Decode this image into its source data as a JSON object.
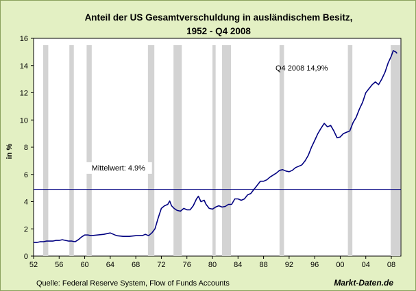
{
  "chart_data": {
    "type": "line",
    "title_line1": "Anteil der US Gesamtverschuldung in ausländischem Besitz,",
    "title_line2": "1952 - Q4 2008",
    "ylabel": "in %",
    "xlabel": "",
    "xlim": [
      1952,
      2009.5
    ],
    "ylim": [
      0,
      16
    ],
    "x_tick_labels": [
      "52",
      "56",
      "60",
      "64",
      "68",
      "72",
      "76",
      "80",
      "84",
      "88",
      "92",
      "96",
      "00",
      "04",
      "08"
    ],
    "x_ticks": [
      1952,
      1956,
      1960,
      1964,
      1968,
      1972,
      1976,
      1980,
      1984,
      1988,
      1992,
      1996,
      2000,
      2004,
      2008
    ],
    "y_ticks": [
      0,
      2,
      4,
      6,
      8,
      10,
      12,
      14,
      16
    ],
    "recessions": [
      [
        1953.5,
        1954.3
      ],
      [
        1957.6,
        1958.3
      ],
      [
        1960.3,
        1961.1
      ],
      [
        1969.9,
        1970.9
      ],
      [
        1973.9,
        1975.2
      ],
      [
        1980.0,
        1980.5
      ],
      [
        1981.5,
        1982.9
      ],
      [
        1990.5,
        1991.2
      ],
      [
        2001.2,
        2001.9
      ],
      [
        2007.9,
        2009.5
      ]
    ],
    "mean_line": 4.9,
    "mean_label": "Mittelwert: 4.9%",
    "end_annotation": "Q4 2008 14,9%",
    "series": [
      {
        "values": [
          [
            1952.0,
            1.0
          ],
          [
            1952.5,
            1.0
          ],
          [
            1953.0,
            1.05
          ],
          [
            1953.5,
            1.05
          ],
          [
            1954.0,
            1.1
          ],
          [
            1954.5,
            1.1
          ],
          [
            1955.0,
            1.1
          ],
          [
            1955.5,
            1.15
          ],
          [
            1956.0,
            1.15
          ],
          [
            1956.5,
            1.2
          ],
          [
            1957.0,
            1.15
          ],
          [
            1957.5,
            1.1
          ],
          [
            1958.0,
            1.1
          ],
          [
            1958.5,
            1.05
          ],
          [
            1959.0,
            1.2
          ],
          [
            1959.5,
            1.4
          ],
          [
            1960.0,
            1.55
          ],
          [
            1960.5,
            1.55
          ],
          [
            1961.0,
            1.5
          ],
          [
            1962.0,
            1.55
          ],
          [
            1963.0,
            1.6
          ],
          [
            1964.0,
            1.7
          ],
          [
            1964.5,
            1.6
          ],
          [
            1965.0,
            1.5
          ],
          [
            1966.0,
            1.45
          ],
          [
            1967.0,
            1.45
          ],
          [
            1968.0,
            1.5
          ],
          [
            1969.0,
            1.5
          ],
          [
            1969.5,
            1.6
          ],
          [
            1970.0,
            1.5
          ],
          [
            1970.5,
            1.7
          ],
          [
            1971.0,
            2.0
          ],
          [
            1971.5,
            2.8
          ],
          [
            1972.0,
            3.5
          ],
          [
            1972.5,
            3.7
          ],
          [
            1973.0,
            3.8
          ],
          [
            1973.3,
            4.05
          ],
          [
            1973.6,
            3.7
          ],
          [
            1974.0,
            3.5
          ],
          [
            1974.5,
            3.35
          ],
          [
            1975.0,
            3.3
          ],
          [
            1975.5,
            3.5
          ],
          [
            1976.0,
            3.4
          ],
          [
            1976.5,
            3.4
          ],
          [
            1977.0,
            3.7
          ],
          [
            1977.5,
            4.2
          ],
          [
            1977.8,
            4.4
          ],
          [
            1978.2,
            4.0
          ],
          [
            1978.7,
            4.1
          ],
          [
            1979.0,
            3.8
          ],
          [
            1979.5,
            3.5
          ],
          [
            1980.0,
            3.45
          ],
          [
            1980.5,
            3.6
          ],
          [
            1981.0,
            3.7
          ],
          [
            1981.5,
            3.6
          ],
          [
            1982.0,
            3.65
          ],
          [
            1982.5,
            3.8
          ],
          [
            1983.0,
            3.8
          ],
          [
            1983.5,
            4.2
          ],
          [
            1984.0,
            4.2
          ],
          [
            1984.5,
            4.1
          ],
          [
            1985.0,
            4.2
          ],
          [
            1985.5,
            4.5
          ],
          [
            1986.0,
            4.6
          ],
          [
            1986.5,
            4.9
          ],
          [
            1987.0,
            5.2
          ],
          [
            1987.5,
            5.5
          ],
          [
            1988.0,
            5.5
          ],
          [
            1988.5,
            5.6
          ],
          [
            1989.0,
            5.8
          ],
          [
            1989.5,
            5.95
          ],
          [
            1990.0,
            6.1
          ],
          [
            1990.5,
            6.3
          ],
          [
            1991.0,
            6.35
          ],
          [
            1991.5,
            6.25
          ],
          [
            1992.0,
            6.2
          ],
          [
            1992.5,
            6.3
          ],
          [
            1993.0,
            6.5
          ],
          [
            1993.5,
            6.6
          ],
          [
            1994.0,
            6.7
          ],
          [
            1994.5,
            7.0
          ],
          [
            1995.0,
            7.4
          ],
          [
            1995.5,
            8.0
          ],
          [
            1996.0,
            8.5
          ],
          [
            1996.5,
            9.0
          ],
          [
            1997.0,
            9.4
          ],
          [
            1997.5,
            9.75
          ],
          [
            1998.0,
            9.5
          ],
          [
            1998.5,
            9.6
          ],
          [
            1999.0,
            9.2
          ],
          [
            1999.5,
            8.7
          ],
          [
            2000.0,
            8.75
          ],
          [
            2000.5,
            9.0
          ],
          [
            2001.0,
            9.1
          ],
          [
            2001.5,
            9.2
          ],
          [
            2002.0,
            9.8
          ],
          [
            2002.5,
            10.2
          ],
          [
            2003.0,
            10.8
          ],
          [
            2003.5,
            11.3
          ],
          [
            2004.0,
            12.0
          ],
          [
            2004.5,
            12.3
          ],
          [
            2005.0,
            12.6
          ],
          [
            2005.5,
            12.8
          ],
          [
            2006.0,
            12.6
          ],
          [
            2006.5,
            13.0
          ],
          [
            2007.0,
            13.5
          ],
          [
            2007.5,
            14.2
          ],
          [
            2008.0,
            14.7
          ],
          [
            2008.3,
            15.1
          ],
          [
            2008.7,
            15.0
          ],
          [
            2008.9,
            14.9
          ]
        ],
        "color": "#000080"
      }
    ],
    "recession_color": "#d3d3d3",
    "mean_line_color": "#000080",
    "grid": false,
    "legend": "none"
  },
  "footer": {
    "source": "Quelle: Federal Reserve System, Flow of Funds Accounts",
    "brand": "Markt-Daten.de"
  },
  "colors": {
    "frame_bg": "#e3f0c3",
    "plot_bg": "#ffffff",
    "line": "#000080"
  }
}
